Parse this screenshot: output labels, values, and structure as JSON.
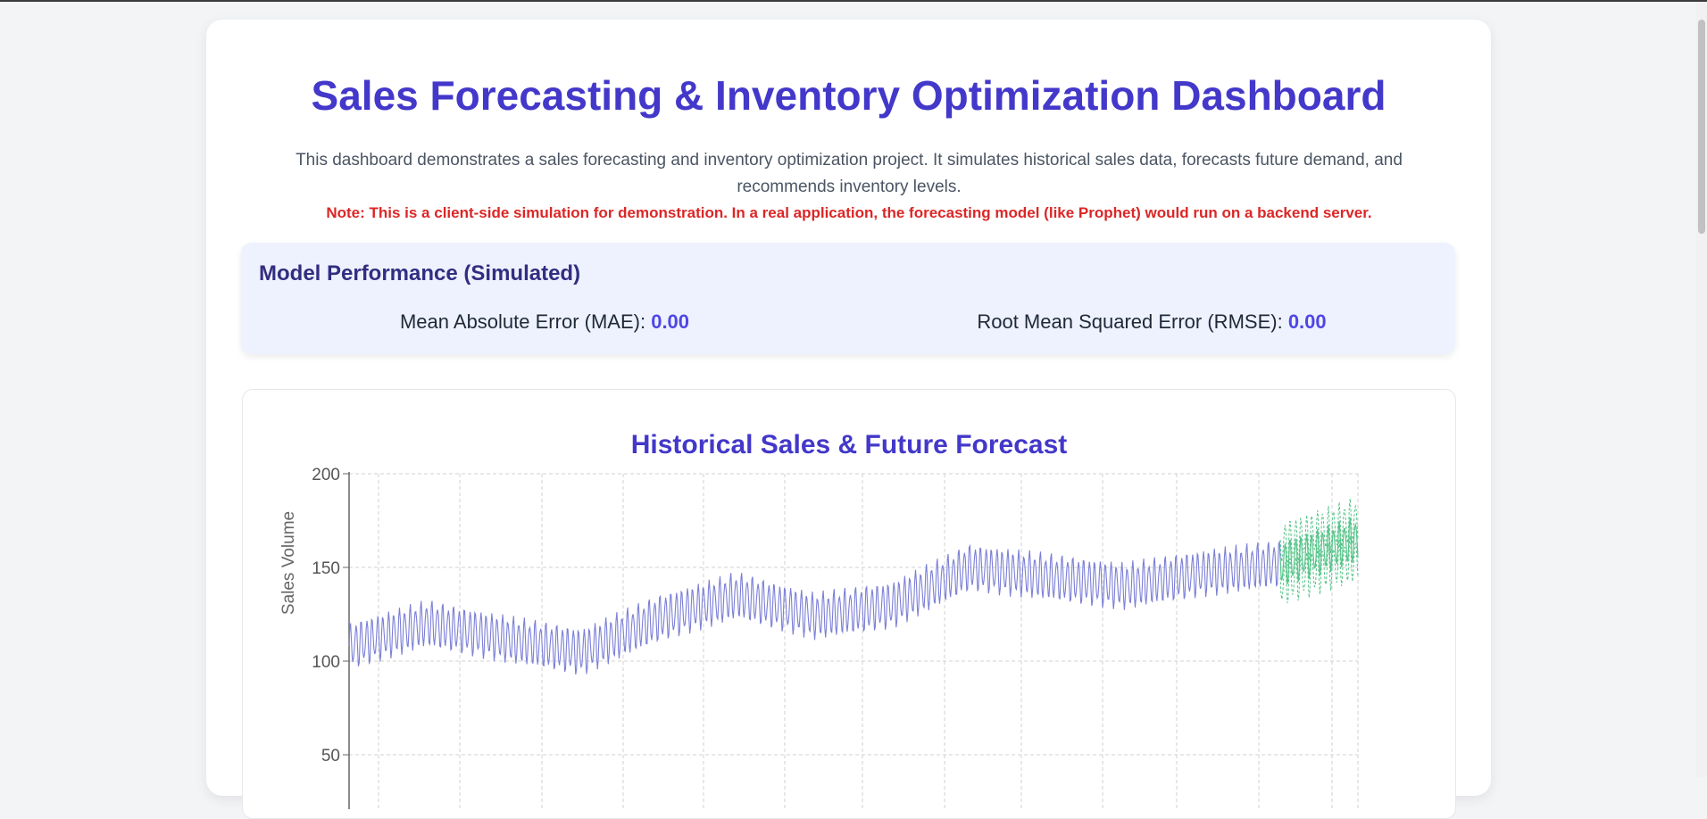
{
  "header": {
    "title": "Sales Forecasting & Inventory Optimization Dashboard",
    "description": "This dashboard demonstrates a sales forecasting and inventory optimization project. It simulates historical sales data, forecasts future demand, and recommends inventory levels.",
    "note": "Note: This is a client-side simulation for demonstration. In a real application, the forecasting model (like Prophet) would run on a backend server."
  },
  "performance": {
    "title": "Model Performance (Simulated)",
    "mae_label": "Mean Absolute Error (MAE):",
    "mae_value": "0.00",
    "rmse_label": "Root Mean Squared Error (RMSE):",
    "rmse_value": "0.00"
  },
  "chart": {
    "title": "Historical Sales & Future Forecast"
  },
  "colors": {
    "accent": "#4338ca",
    "historical": "#7b7fd6",
    "forecast": "#58c48a",
    "note": "#dc2626"
  },
  "chart_data": {
    "type": "line",
    "title": "Historical Sales & Future Forecast",
    "ylabel": "Sales Volume",
    "xlabel": "",
    "ylim": [
      0,
      200
    ],
    "y_ticks": [
      50,
      100,
      150,
      200
    ],
    "grid": true,
    "series": [
      {
        "role": "historical",
        "x_range": [
          0,
          1200
        ],
        "trend": [
          [
            0,
            108
          ],
          [
            100,
            120
          ],
          [
            200,
            112
          ],
          [
            300,
            105
          ],
          [
            400,
            123
          ],
          [
            500,
            135
          ],
          [
            600,
            124
          ],
          [
            700,
            130
          ],
          [
            800,
            150
          ],
          [
            900,
            145
          ],
          [
            1000,
            140
          ],
          [
            1100,
            147
          ],
          [
            1200,
            152
          ]
        ],
        "weekly_amplitude": 12
      },
      {
        "role": "forecast",
        "x_range": [
          1200,
          1300
        ],
        "trend": [
          [
            1200,
            152
          ],
          [
            1300,
            165
          ]
        ],
        "weekly_amplitude": 12,
        "band": 10
      }
    ]
  }
}
